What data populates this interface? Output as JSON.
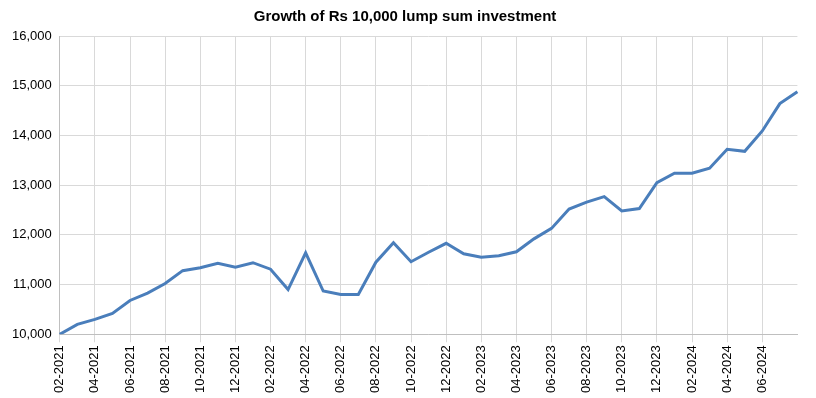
{
  "chart_data": {
    "type": "line",
    "title": "Growth of Rs 10,000 lump sum investment",
    "categories": [
      "02-2021",
      null,
      "04-2021",
      null,
      "06-2021",
      null,
      "08-2021",
      null,
      "10-2021",
      null,
      "12-2021",
      null,
      "02-2022",
      null,
      "04-2022",
      null,
      "06-2022",
      null,
      "08-2022",
      null,
      "10-2022",
      null,
      "12-2022",
      null,
      "02-2023",
      null,
      "04-2023",
      null,
      "06-2023",
      null,
      "08-2023",
      null,
      "10-2023",
      null,
      "12-2023",
      null,
      "02-2024",
      null,
      "04-2024",
      null,
      "06-2024",
      null,
      null
    ],
    "values": [
      10000,
      10200,
      10300,
      10420,
      10680,
      10830,
      11020,
      11280,
      11340,
      11430,
      11350,
      11440,
      11310,
      10900,
      11640,
      10870,
      10800,
      10800,
      11450,
      11840,
      11460,
      11650,
      11830,
      11620,
      11550,
      11580,
      11660,
      11920,
      12130,
      12520,
      12660,
      12770,
      12480,
      12530,
      13050,
      13240,
      13240,
      13340,
      13720,
      13680,
      14090,
      14640,
      14880
    ],
    "color": "#4a7ebb",
    "ylim": [
      10000,
      16000
    ],
    "yticks": [
      {
        "value": 10000,
        "label": "10,000"
      },
      {
        "value": 11000,
        "label": "11,000"
      },
      {
        "value": 12000,
        "label": "12,000"
      },
      {
        "value": 13000,
        "label": "13,000"
      },
      {
        "value": 14000,
        "label": "14,000"
      },
      {
        "value": 15000,
        "label": "15,000"
      },
      {
        "value": 16000,
        "label": "16,000"
      }
    ],
    "grid": true
  }
}
